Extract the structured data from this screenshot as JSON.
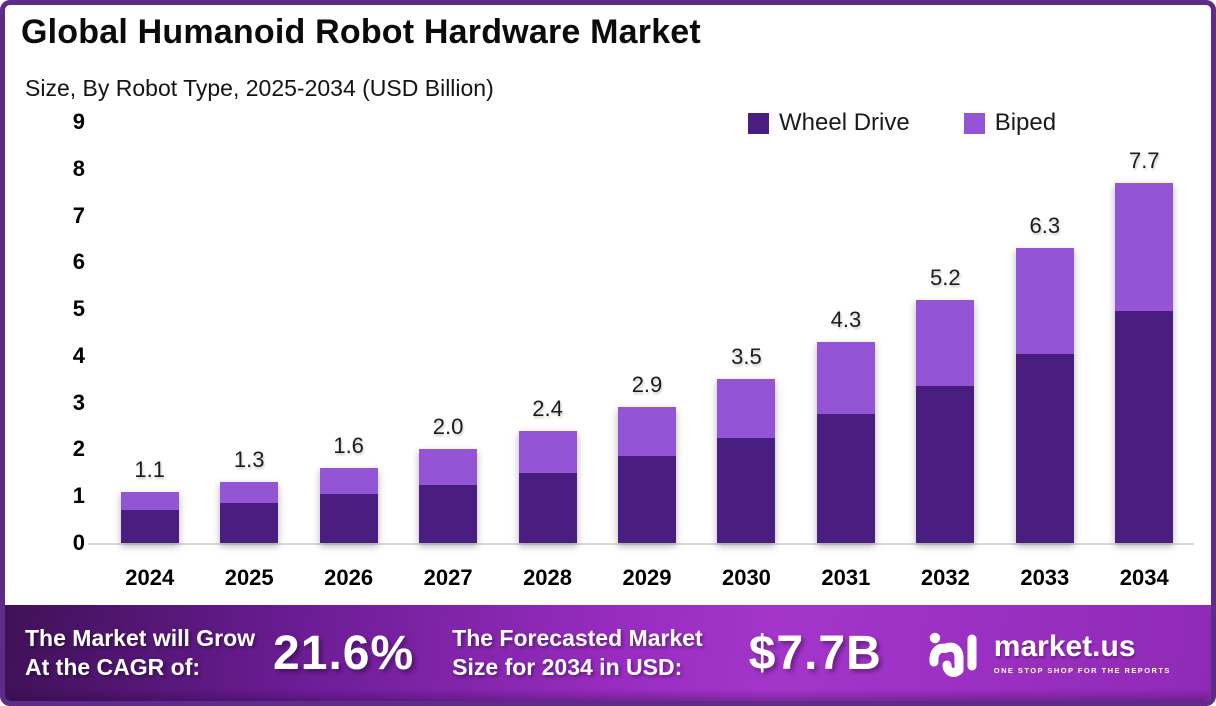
{
  "page": {
    "title": "Global Humanoid Robot Hardware Market",
    "subtitle": "Size, By Robot Type, 2025-2034 (USD Billion)"
  },
  "colors": {
    "wheel_drive": "#4A1E80",
    "biped": "#9355D6",
    "border": "#5E2B8A",
    "banner_dark": "#3F1157",
    "banner_bright": "#A435CB",
    "axis_line": "#D9D9D9"
  },
  "legend": [
    {
      "label": "Wheel Drive",
      "color": "#4A1E80"
    },
    {
      "label": "Biped",
      "color": "#9355D6"
    }
  ],
  "chart_data": {
    "type": "bar",
    "stacked": true,
    "title": "Global Humanoid Robot Hardware Market Size, By Robot Type, 2025-2034 (USD Billion)",
    "categories": [
      "2024",
      "2025",
      "2026",
      "2027",
      "2028",
      "2029",
      "2030",
      "2031",
      "2032",
      "2033",
      "2034"
    ],
    "series": [
      {
        "name": "Wheel Drive",
        "color": "#4A1E80",
        "values": [
          0.7,
          0.85,
          1.05,
          1.25,
          1.5,
          1.85,
          2.25,
          2.75,
          3.35,
          4.05,
          4.95
        ]
      },
      {
        "name": "Biped",
        "color": "#9355D6",
        "values": [
          0.4,
          0.45,
          0.55,
          0.75,
          0.9,
          1.05,
          1.25,
          1.55,
          1.85,
          2.25,
          2.75
        ]
      }
    ],
    "total_labels": [
      "1.1",
      "1.3",
      "1.6",
      "2.0",
      "2.4",
      "2.9",
      "3.5",
      "4.3",
      "5.2",
      "6.3",
      "7.7"
    ],
    "xlabel": "",
    "ylabel": "",
    "ylim": [
      0,
      9
    ],
    "yticks": [
      0,
      1,
      2,
      3,
      4,
      5,
      6,
      7,
      8,
      9
    ],
    "grid": false,
    "legend_position": "top-right",
    "units": "USD Billion"
  },
  "banner": {
    "cagr_label_line1": "The Market will Grow",
    "cagr_label_line2": "At the CAGR of:",
    "cagr_value": "21.6%",
    "forecast_label_line1": "The Forecasted Market",
    "forecast_label_line2": "Size for 2034 in USD:",
    "forecast_value": "$7.7B",
    "brand": {
      "name": "market.us",
      "tagline": "ONE STOP SHOP FOR THE REPORTS"
    }
  }
}
